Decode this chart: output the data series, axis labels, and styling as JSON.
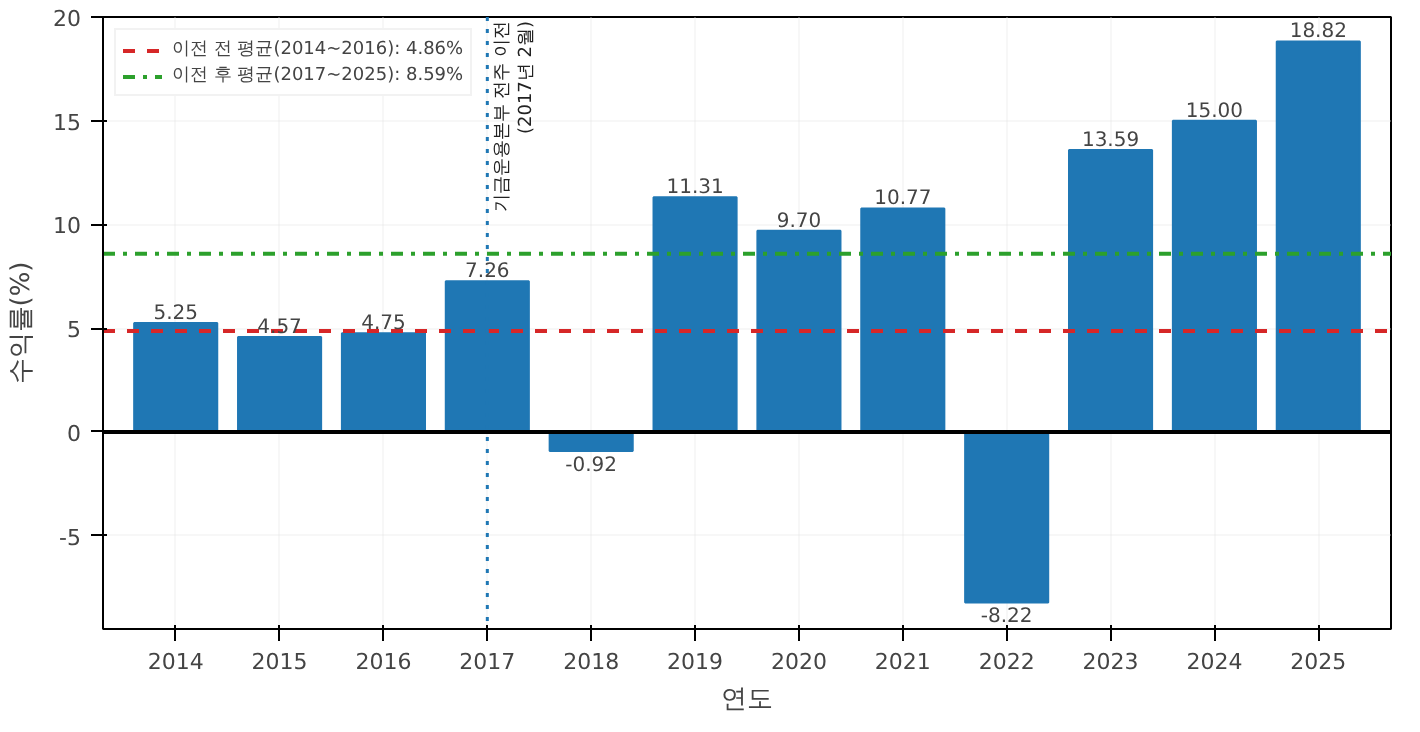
{
  "chart_data": {
    "type": "bar",
    "xlabel": "연도",
    "ylabel": "수익률(%)",
    "categories": [
      "2014",
      "2015",
      "2016",
      "2017",
      "2018",
      "2019",
      "2020",
      "2021",
      "2022",
      "2023",
      "2024",
      "2025"
    ],
    "values": [
      5.25,
      4.57,
      4.75,
      7.26,
      -0.92,
      11.31,
      9.7,
      10.77,
      -8.22,
      13.59,
      15.0,
      18.82
    ],
    "value_labels": [
      "5.25",
      "4.57",
      "4.75",
      "7.26",
      "-0.92",
      "11.31",
      "9.70",
      "10.77",
      "-8.22",
      "13.59",
      "15.00",
      "18.82"
    ],
    "color": "#1f77b4",
    "ylim": [
      -9.5,
      20
    ],
    "yticks": [
      -5,
      0,
      5,
      10,
      15,
      20
    ],
    "grid": true,
    "legend": "top left",
    "ref_lines": [
      {
        "axis": "y",
        "value": 4.86,
        "label": "이전 전 평균(2014~2016): 4.86%",
        "color": "#d62728",
        "line_style": "dashed"
      },
      {
        "axis": "y",
        "value": 8.59,
        "label": "이전 후 평균(2017~2025): 8.59%",
        "color": "#2ca02c",
        "line_style": "dashdot"
      },
      {
        "axis": "y",
        "value": 0,
        "label": null,
        "color": "#000000",
        "line_style": "solid"
      },
      {
        "axis": "x",
        "value": "2017",
        "label": "기금운용본부 전주 이전\n(2017년 2월)",
        "color": "#1f77b4",
        "line_style": "dotted"
      }
    ]
  }
}
